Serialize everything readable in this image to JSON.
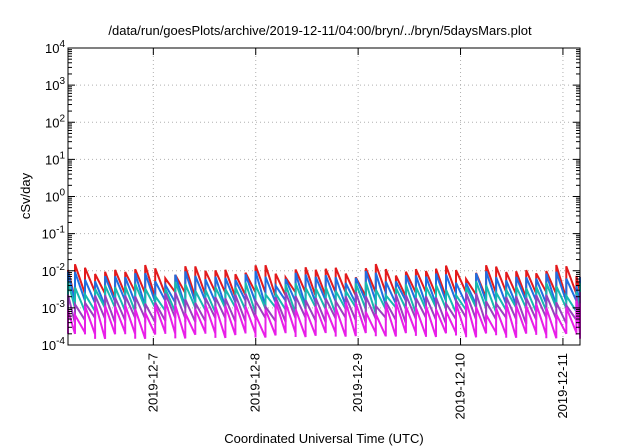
{
  "chart_data": {
    "type": "line",
    "title": "/data/run/goesPlots/archive/2019-12-11/04:00/bryn/../bryn/5daysMars.plot",
    "xlabel": "Coordinated Universal Time (UTC)",
    "ylabel": "cSv/day",
    "y_scale": "log",
    "ylim": [
      0.0001,
      10000
    ],
    "y_ticks": [
      {
        "value": 0.0001,
        "base": "10",
        "exp": "-4"
      },
      {
        "value": 0.001,
        "base": "10",
        "exp": "-3"
      },
      {
        "value": 0.01,
        "base": "10",
        "exp": "-2"
      },
      {
        "value": 0.1,
        "base": "10",
        "exp": "-1"
      },
      {
        "value": 1,
        "base": "10",
        "exp": "0"
      },
      {
        "value": 10,
        "base": "10",
        "exp": "1"
      },
      {
        "value": 100,
        "base": "10",
        "exp": "2"
      },
      {
        "value": 1000,
        "base": "10",
        "exp": "3"
      },
      {
        "value": 10000,
        "base": "10",
        "exp": "4"
      }
    ],
    "xlim": [
      "2019-12-06T04:00",
      "2019-12-11T04:00"
    ],
    "x_ticks": [
      "2019-12-7",
      "2019-12-8",
      "2019-12-9",
      "2019-12-10",
      "2019-12-11"
    ],
    "grid": true,
    "legend": "none",
    "pattern": "sawtooth",
    "sawtooth_period_hours": 2.35,
    "series": [
      {
        "color": "#e31a1c",
        "peak": 0.0105,
        "trough": 0.0022
      },
      {
        "color": "#1f6fe0",
        "peak": 0.007,
        "trough": 0.0013
      },
      {
        "color": "#17b8b0",
        "peak": 0.0036,
        "trough": 0.00085
      },
      {
        "color": "#9a3fbf",
        "peak": 0.0019,
        "trough": 0.00045
      },
      {
        "color": "#e81ee8",
        "peak": 0.0011,
        "trough": 0.00018
      }
    ]
  }
}
